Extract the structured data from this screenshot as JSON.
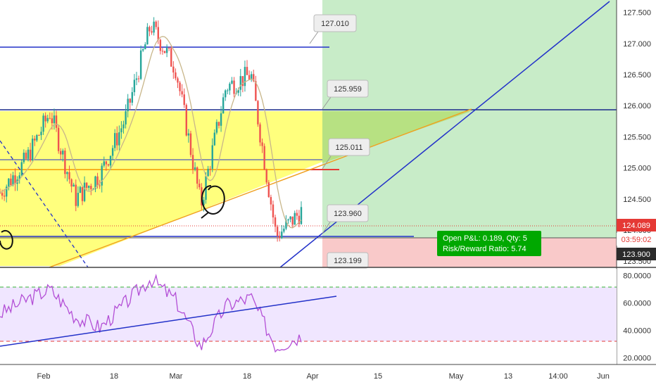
{
  "colors": {
    "up_candle": "#26a69a",
    "down_candle": "#ef5350",
    "channel_fill": "#ffff66",
    "target_zone": "#c8ecc8",
    "stop_zone": "#f9c9c9",
    "trendline": "#2231c9",
    "ma_line": "#c8b68a",
    "rsi_line": "#b34fd6",
    "rsi_band": "#eadcff",
    "pnl_box": "#00a800",
    "price_tag_red": "#e53935",
    "price_tag_dark": "#2b2b2b"
  },
  "price_axis": {
    "ticks": [
      "127.500",
      "127.000",
      "126.500",
      "126.000",
      "125.500",
      "125.000",
      "124.500",
      "124.000",
      "123.500"
    ],
    "range": [
      123.4,
      127.7
    ]
  },
  "price_tags": {
    "last_red": "124.089",
    "countdown": "03:59:02",
    "entry": "123.900"
  },
  "rsi_axis": {
    "ticks": [
      "80.0000",
      "60.0000",
      "40.0000",
      "20.0000"
    ],
    "range": [
      15,
      85
    ],
    "upper_band": 70,
    "lower_band": 30
  },
  "time_axis": {
    "labels": [
      "Feb",
      "18",
      "Mar",
      "18",
      "Apr",
      "15",
      "May",
      "13",
      "14:00",
      "Jun"
    ]
  },
  "callouts": {
    "c1": "127.010",
    "c2": "125.959",
    "c3": "125.011",
    "c4": "123.960",
    "c5": "123.199"
  },
  "position": {
    "line1": "Open P&L: 0.189, Qty: 5",
    "line2": "Risk/Reward Ratio: 5.74"
  },
  "chart_data": {
    "type": "candlestick",
    "instrument_price_levels": {
      "resistance": 127.01,
      "target": 125.959,
      "entry_mark": 125.011,
      "support": 123.96,
      "stop": 123.199
    },
    "close_series": [
      {
        "x": "Jan 24",
        "close": 124.6
      },
      {
        "x": "Feb 1",
        "close": 125.1
      },
      {
        "x": "Feb 5",
        "close": 125.9
      },
      {
        "x": "Feb 12",
        "close": 124.5
      },
      {
        "x": "Feb 18",
        "close": 124.9
      },
      {
        "x": "Feb 25",
        "close": 125.8
      },
      {
        "x": "Mar 1",
        "close": 127.3
      },
      {
        "x": "Mar 6",
        "close": 126.6
      },
      {
        "x": "Mar 11",
        "close": 124.4
      },
      {
        "x": "Mar 15",
        "close": 126.3
      },
      {
        "x": "Mar 20",
        "close": 126.5
      },
      {
        "x": "Mar 24",
        "close": 123.9
      },
      {
        "x": "Mar 28",
        "close": 124.3
      }
    ],
    "rsi_series": [
      52,
      62,
      70,
      50,
      42,
      60,
      78,
      62,
      28,
      58,
      64,
      28,
      36
    ],
    "ylim": [
      123.4,
      127.7
    ]
  }
}
